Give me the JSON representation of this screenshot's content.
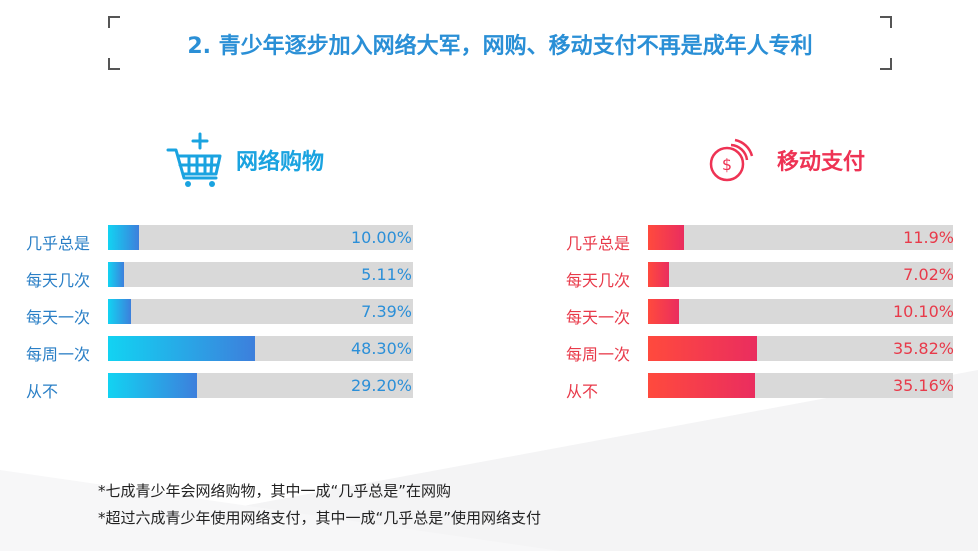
{
  "title": "2. 青少年逐步加入网络大军，网购、移动支付不再是成年人专利",
  "colors": {
    "title": "#2a8fd6",
    "shopping_gradient": [
      "#12d3f2",
      "#3d7fdc"
    ],
    "payment_gradient": [
      "#ff4a3d",
      "#ea2d5f"
    ],
    "track": "#d9d9d9"
  },
  "chart_data": [
    {
      "type": "bar",
      "title": "网络购物",
      "icon": "shopping-cart-plus-icon",
      "categories": [
        "几乎总是",
        "每天几次",
        "每天一次",
        "每周一次",
        "从不"
      ],
      "values": [
        10.0,
        5.11,
        7.39,
        48.3,
        29.2
      ],
      "value_labels": [
        "10.00%",
        "5.11%",
        "7.39%",
        "48.30%",
        "29.20%"
      ],
      "xlim": [
        0,
        100
      ],
      "orientation": "horizontal",
      "grid": false
    },
    {
      "type": "bar",
      "title": "移动支付",
      "icon": "dollar-coin-icon",
      "categories": [
        "几乎总是",
        "每天几次",
        "每天一次",
        "每周一次",
        "从不"
      ],
      "values": [
        11.9,
        7.02,
        10.1,
        35.82,
        35.16
      ],
      "value_labels": [
        "11.9%",
        "7.02%",
        "10.10%",
        "35.82%",
        "35.16%"
      ],
      "xlim": [
        0,
        100
      ],
      "orientation": "horizontal",
      "grid": false
    }
  ],
  "notes": [
    "*七成青少年会网络购物，其中一成“几乎总是”在网购",
    "*超过六成青少年使用网络支付，其中一成“几乎总是”使用网络支付"
  ]
}
